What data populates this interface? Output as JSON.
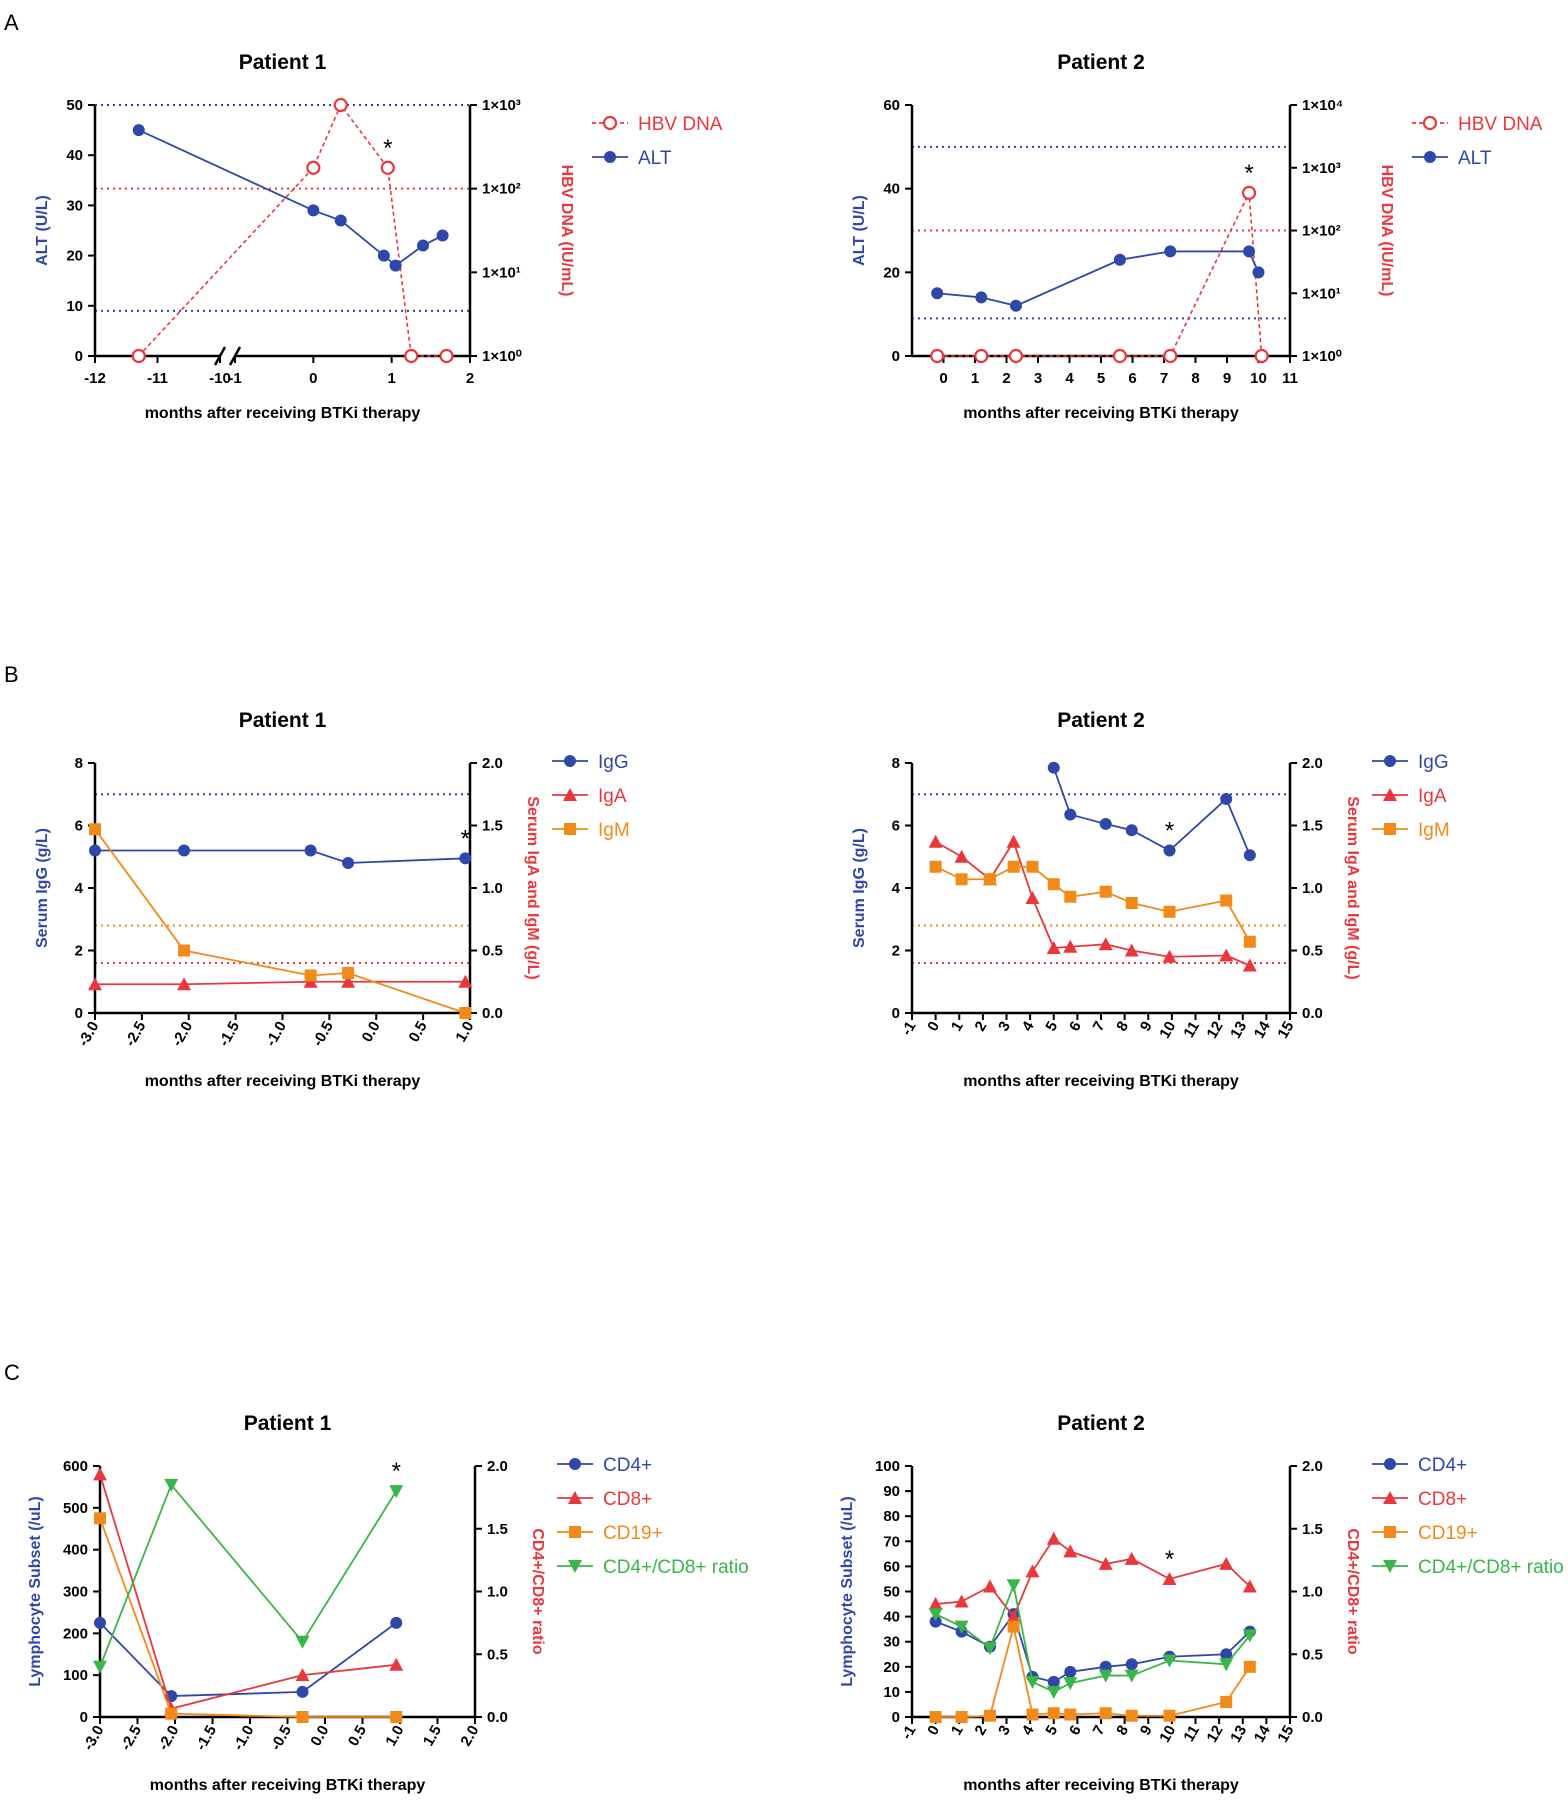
{
  "colors": {
    "blue": "#2f47a8",
    "red": "#e8383d",
    "orange": "#f28a1a",
    "green": "#3bb54a"
  },
  "panels": [
    "A",
    "B",
    "C"
  ],
  "xlabel": "months after receiving BTKi therapy",
  "chart_data": [
    {
      "id": "A1",
      "type": "line",
      "title": "Patient 1",
      "x_break": true,
      "x_ticks": [
        "-12",
        "-11",
        "-10",
        "-1",
        "0",
        "1",
        "2"
      ],
      "ylabel_left": "ALT (U/L)",
      "ylim_left": [
        0,
        50
      ],
      "yticks_left": [
        "0",
        "10",
        "20",
        "30",
        "40",
        "50"
      ],
      "ylabel_right": "HBV DNA (IU/mL)",
      "yticks_right": [
        "1×10⁰",
        "1×10¹",
        "1×10²",
        "1×10³"
      ],
      "ylim_right_log": [
        0,
        3
      ],
      "ref_lines": [
        {
          "axis": "left",
          "y": 50,
          "color": "blue"
        },
        {
          "axis": "left",
          "y": 9,
          "color": "blue"
        },
        {
          "axis": "right",
          "y": 2,
          "color": "red"
        }
      ],
      "series": [
        {
          "name": "HBV DNA",
          "axis": "right",
          "color": "red",
          "marker": "open-circle",
          "dashed": true,
          "x": [
            -11.3,
            0,
            0.35,
            0.95,
            1.25,
            1.7
          ],
          "y": [
            0,
            2.25,
            3,
            2.25,
            0,
            0
          ]
        },
        {
          "name": "ALT",
          "axis": "left",
          "color": "blue",
          "marker": "circle",
          "dashed": false,
          "x": [
            -11.3,
            0,
            0.35,
            0.9,
            1.05,
            1.4,
            1.65
          ],
          "y": [
            45,
            29,
            27,
            20,
            18,
            22,
            24
          ]
        }
      ],
      "annotations": [
        {
          "text": "*",
          "x": 0.95,
          "y_axis": "right",
          "y": 2.25
        }
      ],
      "legend": [
        "HBV DNA",
        "ALT"
      ]
    },
    {
      "id": "A2",
      "type": "line",
      "title": "Patient 2",
      "xlim": [
        -1,
        11
      ],
      "x_ticks": [
        "0",
        "1",
        "2",
        "3",
        "4",
        "5",
        "6",
        "7",
        "8",
        "9",
        "10",
        "11"
      ],
      "ylabel_left": "ALT (U/L)",
      "ylim_left": [
        0,
        60
      ],
      "yticks_left": [
        "0",
        "20",
        "40",
        "60"
      ],
      "ylabel_right": "HBV DNA (IU/mL)",
      "yticks_right": [
        "1×10⁰",
        "1×10¹",
        "1×10²",
        "1×10³",
        "1×10⁴"
      ],
      "ylim_right_log": [
        0,
        4
      ],
      "ref_lines": [
        {
          "axis": "left",
          "y": 50,
          "color": "blue"
        },
        {
          "axis": "left",
          "y": 9,
          "color": "blue"
        },
        {
          "axis": "right",
          "y": 2,
          "color": "red"
        }
      ],
      "series": [
        {
          "name": "HBV DNA",
          "axis": "right",
          "color": "red",
          "marker": "open-circle",
          "dashed": true,
          "x": [
            -0.2,
            1.2,
            2.3,
            5.6,
            7.2,
            9.7,
            10.1
          ],
          "y": [
            0,
            0,
            0,
            0,
            0,
            2.6,
            0
          ]
        },
        {
          "name": "ALT",
          "axis": "left",
          "color": "blue",
          "marker": "circle",
          "dashed": false,
          "x": [
            -0.2,
            1.2,
            2.3,
            5.6,
            7.2,
            9.7,
            10.0
          ],
          "y": [
            15,
            14,
            12,
            23,
            25,
            25,
            20
          ]
        }
      ],
      "annotations": [
        {
          "text": "*",
          "x": 9.7,
          "y_axis": "right",
          "y": 2.6
        }
      ],
      "legend": [
        "HBV DNA",
        "ALT"
      ]
    },
    {
      "id": "B1",
      "type": "line",
      "title": "Patient 1",
      "xlim": [
        -3,
        1
      ],
      "x_ticks": [
        "-3.0",
        "-2.5",
        "-2.0",
        "-1.5",
        "-1.0",
        "-0.5",
        "0.0",
        "0.5",
        "1.0"
      ],
      "ylabel_left": "Serum IgG (g/L)",
      "ylim_left": [
        0,
        8
      ],
      "yticks_left": [
        "0",
        "2",
        "4",
        "6",
        "8"
      ],
      "ylabel_right": "Serum IgA and IgM (g/L)",
      "ylim_right": [
        0,
        2
      ],
      "yticks_right": [
        "0.0",
        "0.5",
        "1.0",
        "1.5",
        "2.0"
      ],
      "ref_lines": [
        {
          "axis": "left",
          "y": 7,
          "color": "blue"
        },
        {
          "axis": "right",
          "y": 0.7,
          "color": "orange"
        },
        {
          "axis": "right",
          "y": 0.4,
          "color": "red"
        }
      ],
      "series": [
        {
          "name": "IgG",
          "axis": "left",
          "color": "blue",
          "marker": "circle",
          "x": [
            -3,
            -2.05,
            -0.7,
            -0.3,
            0.95
          ],
          "y": [
            5.2,
            5.2,
            5.2,
            4.8,
            4.95
          ]
        },
        {
          "name": "IgA",
          "axis": "right",
          "color": "red",
          "marker": "triangle",
          "x": [
            -3,
            -2.05,
            -0.7,
            -0.3,
            0.95
          ],
          "y": [
            0.23,
            0.23,
            0.25,
            0.25,
            0.25
          ]
        },
        {
          "name": "IgM",
          "axis": "right",
          "color": "orange",
          "marker": "square",
          "x": [
            -3,
            -2.05,
            -0.7,
            -0.3,
            0.95
          ],
          "y": [
            1.47,
            0.5,
            0.3,
            0.32,
            0.0
          ]
        }
      ],
      "annotations": [
        {
          "text": "*",
          "x": 0.95,
          "y_axis": "left",
          "y": 4.95
        }
      ],
      "legend": [
        "IgG",
        "IgA",
        "IgM"
      ]
    },
    {
      "id": "B2",
      "type": "line",
      "title": "Patient 2",
      "xlim": [
        -1,
        15
      ],
      "x_ticks": [
        "-1",
        "0",
        "1",
        "2",
        "3",
        "4",
        "5",
        "6",
        "7",
        "8",
        "9",
        "10",
        "11",
        "12",
        "13",
        "14",
        "15"
      ],
      "ylabel_left": "Serum IgG (g/L)",
      "ylim_left": [
        0,
        8
      ],
      "yticks_left": [
        "0",
        "2",
        "4",
        "6",
        "8"
      ],
      "ylabel_right": "Serum IgA and IgM (g/L)",
      "ylim_right": [
        0,
        2
      ],
      "yticks_right": [
        "0.0",
        "0.5",
        "1.0",
        "1.5",
        "2.0"
      ],
      "ref_lines": [
        {
          "axis": "left",
          "y": 7,
          "color": "blue"
        },
        {
          "axis": "right",
          "y": 0.7,
          "color": "orange"
        },
        {
          "axis": "right",
          "y": 0.4,
          "color": "red"
        }
      ],
      "series": [
        {
          "name": "IgG",
          "axis": "left",
          "color": "blue",
          "marker": "circle",
          "x": [
            5,
            5.7,
            7.2,
            8.3,
            9.9,
            12.3,
            13.3
          ],
          "y": [
            7.85,
            6.35,
            6.05,
            5.85,
            5.2,
            6.85,
            5.05
          ]
        },
        {
          "name": "IgA",
          "axis": "right",
          "color": "red",
          "marker": "triangle",
          "x": [
            0,
            1.1,
            2.3,
            3.3,
            4.1,
            5,
            5.7,
            7.2,
            8.3,
            9.9,
            12.3,
            13.3
          ],
          "y": [
            1.37,
            1.25,
            1.07,
            1.37,
            0.92,
            0.52,
            0.53,
            0.55,
            0.5,
            0.45,
            0.46,
            0.38
          ]
        },
        {
          "name": "IgM",
          "axis": "right",
          "color": "orange",
          "marker": "square",
          "x": [
            0,
            1.1,
            2.3,
            3.3,
            4.1,
            5,
            5.7,
            7.2,
            8.3,
            9.9,
            12.3,
            13.3
          ],
          "y": [
            1.17,
            1.07,
            1.07,
            1.17,
            1.17,
            1.03,
            0.93,
            0.97,
            0.88,
            0.81,
            0.9,
            0.57
          ]
        }
      ],
      "annotations": [
        {
          "text": "*",
          "x": 9.9,
          "y_axis": "left",
          "y": 5.2
        }
      ],
      "legend": [
        "IgG",
        "IgA",
        "IgM"
      ]
    },
    {
      "id": "C1",
      "type": "line",
      "title": "Patient 1",
      "xlim": [
        -3,
        2
      ],
      "x_ticks": [
        "-3.0",
        "-2.5",
        "-2.0",
        "-1.5",
        "-1.0",
        "-0.5",
        "0.0",
        "0.5",
        "1.0",
        "1.5",
        "2.0"
      ],
      "ylabel_left": "Lymphocyte Subset (/uL)",
      "ylim_left": [
        0,
        600
      ],
      "yticks_left": [
        "0",
        "100",
        "200",
        "300",
        "400",
        "500",
        "600"
      ],
      "ylabel_right": "CD4+/CD8+ ratio",
      "ylim_right": [
        0,
        2
      ],
      "yticks_right": [
        "0.0",
        "0.5",
        "1.0",
        "1.5",
        "2.0"
      ],
      "series": [
        {
          "name": "CD4+",
          "axis": "left",
          "color": "blue",
          "marker": "circle",
          "x": [
            -3,
            -2.05,
            -0.3,
            0.95
          ],
          "y": [
            225,
            50,
            60,
            225
          ]
        },
        {
          "name": "CD8+",
          "axis": "left",
          "color": "red",
          "marker": "triangle",
          "x": [
            -3,
            -2.05,
            -0.3,
            0.95
          ],
          "y": [
            580,
            20,
            100,
            125
          ]
        },
        {
          "name": "CD19+",
          "axis": "left",
          "color": "orange",
          "marker": "square",
          "x": [
            -3,
            -2.05,
            -0.3,
            0.95
          ],
          "y": [
            475,
            8,
            0,
            0
          ]
        },
        {
          "name": "CD4+/CD8+ ratio",
          "axis": "right",
          "color": "green",
          "marker": "triangle-down",
          "x": [
            -3,
            -2.05,
            -0.3,
            0.95
          ],
          "y": [
            0.4,
            1.85,
            0.6,
            1.8
          ]
        }
      ],
      "annotations": [
        {
          "text": "*",
          "x": 0.95,
          "y_axis": "right",
          "y": 1.8
        }
      ],
      "legend": [
        "CD4+",
        "CD8+",
        "CD19+",
        "CD4+/CD8+ ratio"
      ]
    },
    {
      "id": "C2",
      "type": "line",
      "title": "Patient 2",
      "xlim": [
        -1,
        15
      ],
      "x_ticks": [
        "-1",
        "0",
        "1",
        "2",
        "3",
        "4",
        "5",
        "6",
        "7",
        "8",
        "9",
        "10",
        "11",
        "12",
        "13",
        "14",
        "15"
      ],
      "ylabel_left": "Lymphocyte Subset (/uL)",
      "ylim_left": [
        0,
        100
      ],
      "yticks_left": [
        "0",
        "10",
        "20",
        "30",
        "40",
        "50",
        "60",
        "70",
        "80",
        "90",
        "100"
      ],
      "ylabel_right": "CD4+/CD8+ ratio",
      "ylim_right": [
        0,
        2
      ],
      "yticks_right": [
        "0.0",
        "0.5",
        "1.0",
        "1.5",
        "2.0"
      ],
      "series": [
        {
          "name": "CD4+",
          "axis": "left",
          "color": "blue",
          "marker": "circle",
          "x": [
            0,
            1.1,
            2.3,
            3.3,
            4.1,
            5,
            5.7,
            7.2,
            8.3,
            9.9,
            12.3,
            13.3
          ],
          "y": [
            38,
            34,
            28,
            41,
            16,
            14,
            18,
            20,
            21,
            24,
            25,
            34
          ]
        },
        {
          "name": "CD8+",
          "axis": "left",
          "color": "red",
          "marker": "triangle",
          "x": [
            0,
            1.1,
            2.3,
            3.3,
            4.1,
            5,
            5.7,
            7.2,
            8.3,
            9.9,
            12.3,
            13.3
          ],
          "y": [
            45,
            46,
            52,
            40,
            58,
            71,
            66,
            61,
            63,
            55,
            61,
            52
          ]
        },
        {
          "name": "CD19+",
          "axis": "left",
          "color": "orange",
          "marker": "square",
          "x": [
            0,
            1.1,
            2.3,
            3.3,
            4.1,
            5,
            5.7,
            7.2,
            8.3,
            9.9,
            12.3,
            13.3
          ],
          "y": [
            0,
            0,
            0.5,
            36,
            1,
            1.5,
            1,
            1.5,
            0.5,
            0.5,
            6,
            20
          ]
        },
        {
          "name": "CD4+/CD8+ ratio",
          "axis": "right",
          "color": "green",
          "marker": "triangle-down",
          "x": [
            0,
            1.1,
            2.3,
            3.3,
            4.1,
            5,
            5.7,
            7.2,
            8.3,
            9.9,
            12.3,
            13.3
          ],
          "y": [
            0.82,
            0.72,
            0.55,
            1.05,
            0.28,
            0.2,
            0.27,
            0.33,
            0.33,
            0.45,
            0.42,
            0.65
          ]
        }
      ],
      "annotations": [
        {
          "text": "*",
          "x": 9.9,
          "y_axis": "left",
          "y": 55
        }
      ],
      "legend": [
        "CD4+",
        "CD8+",
        "CD19+",
        "CD4+/CD8+ ratio"
      ]
    }
  ]
}
